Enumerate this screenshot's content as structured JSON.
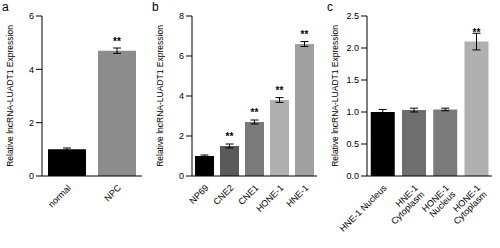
{
  "chart_data": [
    {
      "panel": "a",
      "type": "bar",
      "ylabel": "Relative lncRNA-LUADT1 Expression",
      "categories": [
        "normal",
        "NPC"
      ],
      "values": [
        1.0,
        4.7
      ],
      "errors": [
        0.05,
        0.1
      ],
      "colors": [
        "#000000",
        "#8c8c8c"
      ],
      "annotations": [
        null,
        "**"
      ],
      "ylim": [
        0,
        6
      ],
      "yticks": [
        0,
        2,
        4,
        6
      ]
    },
    {
      "panel": "b",
      "type": "bar",
      "ylabel": "Relative lncRNA-LUADT1 Expression",
      "categories": [
        "NP69",
        "CNE2",
        "CNE1",
        "HONE-1",
        "HNE-1"
      ],
      "values": [
        1.0,
        1.5,
        2.7,
        3.8,
        6.6
      ],
      "errors": [
        0.05,
        0.1,
        0.1,
        0.12,
        0.12
      ],
      "colors": [
        "#000000",
        "#5a5a5a",
        "#7a7a7a",
        "#b0b0b0",
        "#a0a0a0"
      ],
      "annotations": [
        null,
        "**",
        "**",
        "**",
        "**"
      ],
      "ylim": [
        0,
        8
      ],
      "yticks": [
        0,
        2,
        4,
        6,
        8
      ]
    },
    {
      "panel": "c",
      "type": "bar",
      "ylabel": "Relative lncRNA-LUADT1 Expression",
      "categories": [
        "HNE-1 Nucleus",
        "HNE-1 Cytoplasm",
        "HONE-1 Nucleus",
        "HONE-1 Cytoplasm"
      ],
      "values": [
        1.0,
        1.03,
        1.04,
        2.1
      ],
      "errors": [
        0.04,
        0.03,
        0.02,
        0.13
      ],
      "colors": [
        "#000000",
        "#6e6e6e",
        "#7a7a7a",
        "#b0b0b0"
      ],
      "annotations": [
        null,
        null,
        null,
        "**"
      ],
      "ylim": [
        0,
        2.5
      ],
      "yticks": [
        {
          "value": 0,
          "label": "0.0"
        },
        0.5,
        {
          "value": 1,
          "label": "1.0"
        },
        1.5,
        {
          "value": 2,
          "label": "2.0"
        },
        2.5
      ]
    }
  ]
}
